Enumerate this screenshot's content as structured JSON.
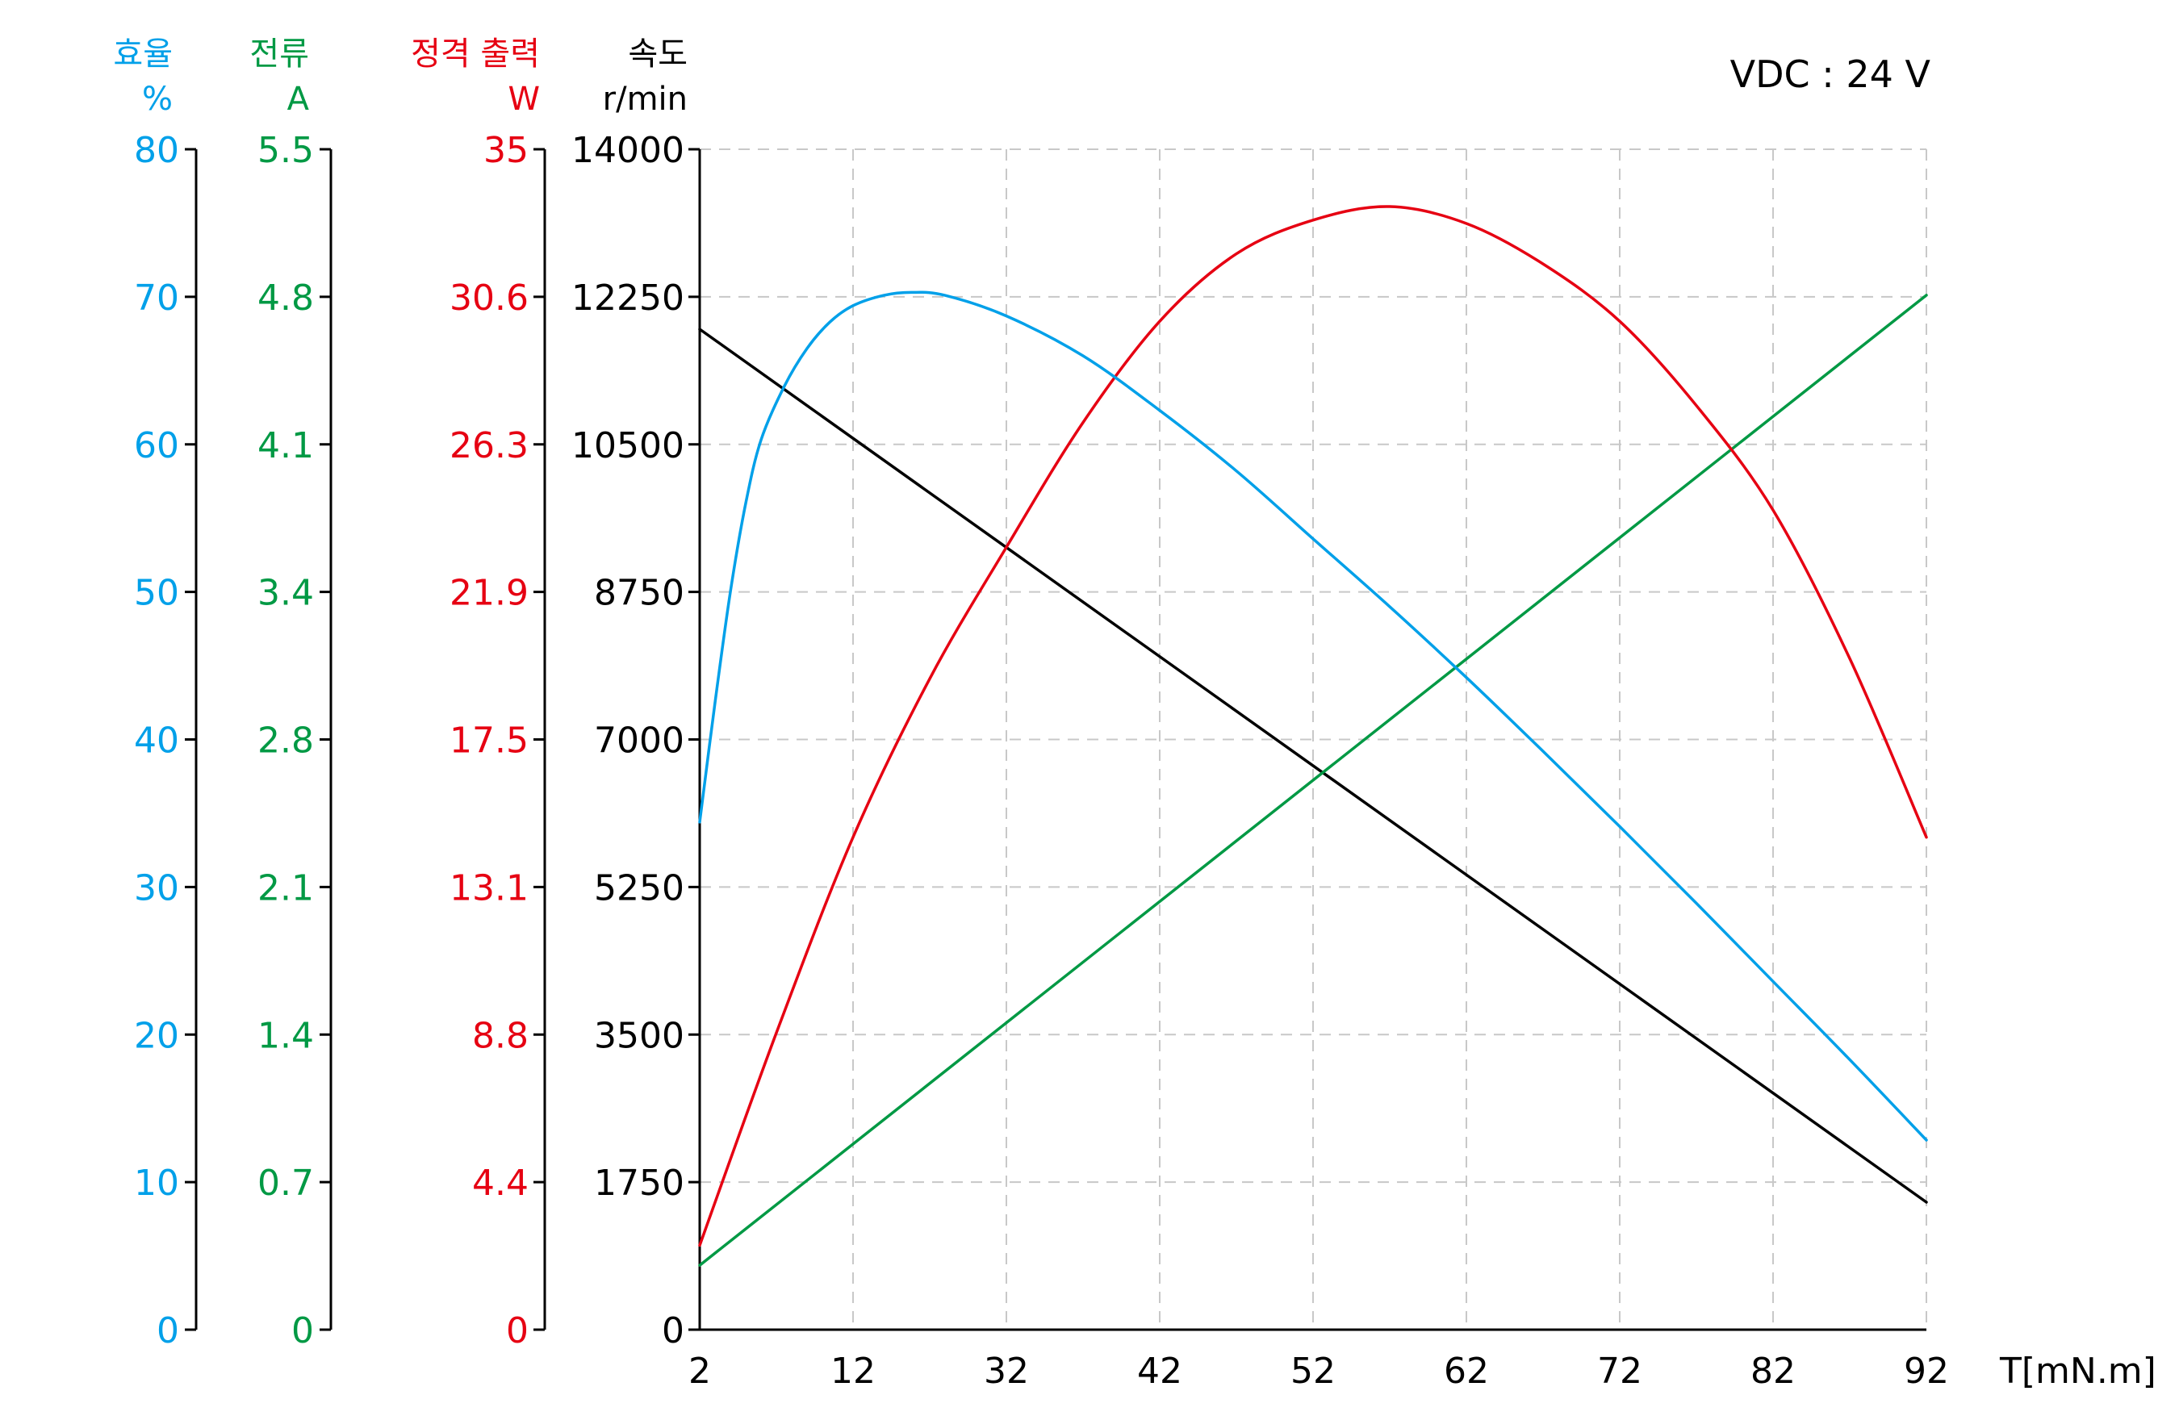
{
  "annotation": "VDC : 24 V",
  "colors": {
    "efficiency": "#00a0e9",
    "current": "#009944",
    "output": "#e60012",
    "speed": "#000000",
    "grid": "#c8c8c8"
  },
  "axes": {
    "efficiency": {
      "title": "효율",
      "unit": "%",
      "ticks": [
        "0",
        "10",
        "20",
        "30",
        "40",
        "50",
        "60",
        "70",
        "80"
      ],
      "range": [
        0,
        80
      ]
    },
    "current": {
      "title": "전류",
      "unit": "A",
      "ticks": [
        "0",
        "0.7",
        "1.4",
        "2.1",
        "2.8",
        "3.4",
        "4.1",
        "4.8",
        "5.5"
      ],
      "range": [
        0,
        5.5
      ]
    },
    "output": {
      "title": "정격 출력",
      "unit": "W",
      "ticks": [
        "0",
        "4.4",
        "8.8",
        "13.1",
        "17.5",
        "21.9",
        "26.3",
        "30.6",
        "35"
      ],
      "range": [
        0,
        35
      ]
    },
    "speed": {
      "title": "속도",
      "unit": "r/min",
      "ticks": [
        "0",
        "1750",
        "3500",
        "5250",
        "7000",
        "8750",
        "10500",
        "12250",
        "14000"
      ],
      "range": [
        0,
        14000
      ]
    },
    "x": {
      "label": "T[mN.m]",
      "ticks": [
        "2",
        "12",
        "32",
        "42",
        "52",
        "62",
        "72",
        "82",
        "92"
      ]
    }
  },
  "chart_data": {
    "type": "line",
    "title": "",
    "annotation": "VDC : 24 V",
    "xlabel": "T[mN.m]",
    "x_tick_labels": [
      "2",
      "12",
      "32",
      "42",
      "52",
      "62",
      "72",
      "82",
      "92"
    ],
    "x_positions_note": "tick labels are evenly spaced; x values below are tick-index positions 0..8",
    "grid": true,
    "legend": "none (axes colour-coded)",
    "series": [
      {
        "name": "속도 (r/min)",
        "axis": "speed",
        "color": "#000000",
        "x": [
          0,
          8
        ],
        "values": [
          11866,
          1512
        ]
      },
      {
        "name": "전류 (A)",
        "axis": "current",
        "color": "#009944",
        "x": [
          0,
          8
        ],
        "values": [
          0.3,
          4.82
        ]
      },
      {
        "name": "정격 출력 (W)",
        "axis": "output",
        "color": "#e60012",
        "x": [
          0,
          0.5,
          1,
          1.5,
          2,
          2.5,
          3,
          3.5,
          4,
          4.5,
          5,
          5.5,
          6,
          6.5,
          7,
          7.5,
          8
        ],
        "values": [
          2.5,
          8.8,
          14.6,
          19.3,
          23.2,
          26.9,
          29.9,
          31.9,
          32.9,
          33.3,
          32.8,
          31.6,
          29.9,
          27.4,
          24.3,
          19.9,
          14.6
        ]
      },
      {
        "name": "효율 (%)",
        "axis": "efficiency",
        "color": "#00a0e9",
        "x": [
          0,
          0.1,
          0.2,
          0.3,
          0.4,
          0.55,
          0.7,
          0.85,
          1,
          1.2,
          1.38,
          1.6,
          2,
          2.5,
          3,
          3.5,
          4,
          4.5,
          5,
          5.5,
          6,
          6.5,
          7,
          7.5,
          8
        ],
        "values": [
          34.4,
          42.5,
          50.0,
          56.0,
          60.3,
          63.9,
          66.5,
          68.3,
          69.4,
          70.1,
          70.3,
          70.1,
          68.7,
          66.0,
          62.3,
          58.2,
          53.6,
          49.0,
          44.2,
          39.2,
          34.1,
          28.9,
          23.6,
          18.3,
          12.85
        ]
      }
    ]
  }
}
